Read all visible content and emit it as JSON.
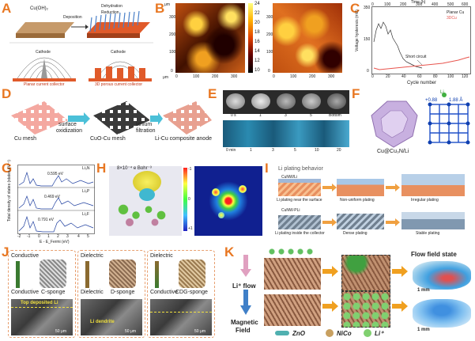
{
  "panels": {
    "A": {
      "label": "A",
      "cuoh2": "Cu(OH)₂",
      "deposition": "Deposition",
      "dehydration": "Dehydration",
      "reduction": "Reduction",
      "cathode": "Cathode",
      "planar": "Planar current collector",
      "porous": "3D porous current collector",
      "li_plus": "Li⁺"
    },
    "B": {
      "label": "B",
      "colorbar_ticks": [
        "24",
        "22",
        "20",
        "18",
        "16",
        "14",
        "12",
        "10"
      ],
      "x_unit": "μm",
      "y_unit": "μm",
      "x_ticks": [
        "0",
        "100",
        "200",
        "300"
      ],
      "y_ticks": [
        "0",
        "100",
        "200",
        "300"
      ],
      "x_ticks2": [
        "0",
        "100",
        "200",
        "300"
      ],
      "y_ticks2": [
        "0",
        "100",
        "200",
        "300"
      ]
    },
    "C": {
      "label": "C",
      "top_axis": "Time (h)",
      "top_ticks": [
        "0",
        "100",
        "200",
        "300",
        "400",
        "500",
        "600"
      ],
      "y_label": "Voltage hysteresis (mV)",
      "x_label": "Cycle number",
      "x_ticks": [
        "0",
        "20",
        "40",
        "60",
        "80",
        "100",
        "120"
      ],
      "y_ticks": [
        "0",
        "50",
        "100",
        "150",
        "200",
        "250",
        "300",
        "350"
      ],
      "legend": [
        "Planar Cu",
        "3DCu"
      ],
      "annotation": "Short circuit",
      "colors": {
        "planar": "#333333",
        "cu3d": "#e8554e"
      }
    },
    "D": {
      "label": "D",
      "step1": "Cu mesh",
      "arrow1_top": "surface",
      "arrow1_bot": "oxidization",
      "step2": "CuO-Cu mesh",
      "arrow2_top": "lithium",
      "arrow2_bot": "filtration",
      "step3": "Li-Cu composite anode"
    },
    "E": {
      "label": "E",
      "times_top": [
        "0 s",
        "1",
        "3",
        "5",
        "Bottom"
      ],
      "times_bot": [
        "0 min",
        "1",
        "3",
        "5",
        "10",
        "20"
      ]
    },
    "F": {
      "label": "F",
      "caption": "Cu@Cu₃N/Li",
      "li": "Li",
      "val1": "+0.88",
      "val2": "1.88 Å"
    },
    "G": {
      "label": "G",
      "y_label": "Total density of states (states eV⁻¹)",
      "x_label": "E - E_Fermi (eV)",
      "x_ticks": [
        "-2",
        "-1",
        "0",
        "1",
        "2",
        "3",
        "4",
        "5"
      ],
      "curves": [
        "Li₃N",
        "Li₃P",
        "Li₂F"
      ],
      "gaps": [
        "0.595 eV",
        "0.469 eV",
        "0.791 eV"
      ]
    },
    "H": {
      "label": "H",
      "iso": "8×10⁻⁴ e Bohr⁻³",
      "cbar": [
        "-1",
        "0",
        "+1"
      ]
    },
    "I": {
      "label": "I",
      "title": "Li plating behavior",
      "cuNW": "CuNW/Li",
      "cuNW_pli": "CuNW-PLi",
      "row1": [
        "Li plating near the surface",
        "Non-uniform plating",
        "Irregular plating"
      ],
      "row2": [
        "Li plating inside the collector",
        "Dense plating",
        "Stable plating"
      ]
    },
    "J": {
      "label": "J",
      "cond1": "Conductive",
      "cond2": "Conductive",
      "diel1": "Dielectric",
      "diel2": "Dielectric",
      "diel3": "Dielectric",
      "cond3": "Conductive",
      "c_sponge": "C-sponge",
      "d_sponge": "D-sponge",
      "cdg_sponge": "CDG-sponge",
      "top_li": "Top deposited Li",
      "dendrite": "Li dendrite",
      "scale": "50 μm"
    },
    "K": {
      "label": "K",
      "flow_title": "Flow field state",
      "li_flow": "Li⁺ flow",
      "magnetic": "Magnetic",
      "field": "Field",
      "scale": "1 mm",
      "legend": [
        "ZnO",
        "NiCo",
        "Li⁺"
      ]
    }
  },
  "colors": {
    "accent": "#e87722",
    "blue": "#4a90d9",
    "pink": "#e8a0a0"
  }
}
